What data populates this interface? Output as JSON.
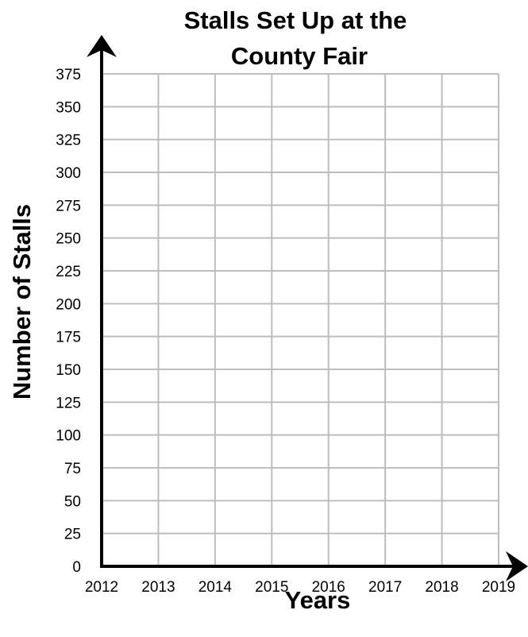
{
  "chart_data": {
    "type": "line",
    "title_line1": "Stalls Set Up at the",
    "title_line2": "County Fair",
    "xlabel": "Years",
    "ylabel": "Number of Stalls",
    "x_ticks": [
      "2012",
      "2013",
      "2014",
      "2015",
      "2016",
      "2017",
      "2018",
      "2019"
    ],
    "y_ticks": [
      "0",
      "25",
      "50",
      "75",
      "100",
      "125",
      "150",
      "175",
      "200",
      "225",
      "250",
      "275",
      "300",
      "325",
      "350",
      "375"
    ],
    "xlim": [
      2012,
      2019
    ],
    "ylim": [
      0,
      375
    ],
    "grid": true,
    "series": []
  }
}
